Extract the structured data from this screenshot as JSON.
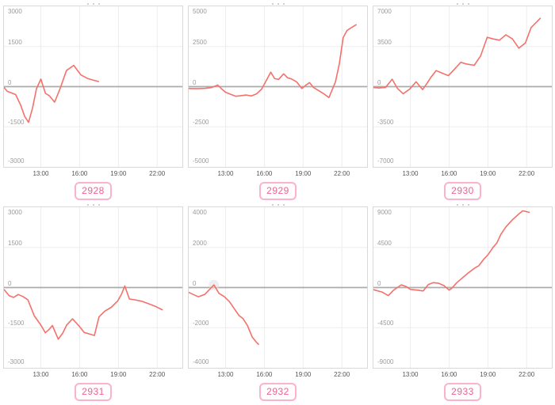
{
  "page": {
    "background": "#ffffff"
  },
  "colors": {
    "series_line": "#f4716b",
    "zero_line": "#ababab",
    "grid_line": "#ededed",
    "card_border": "#d9d9d9",
    "y_tick_label": "#9b9b9b",
    "x_tick_label": "#545454",
    "badge_text": "#ee6292",
    "badge_border": "#f9b4c8",
    "highlight_marker": "#e3e3e3"
  },
  "axis_defaults": {
    "x_tick_labels": [
      "13:00",
      "16:00",
      "19:00",
      "22:00"
    ],
    "x_tick_hours": [
      13,
      16,
      19,
      22
    ],
    "x_domain_hours": [
      10.15,
      23.95
    ],
    "grid": "on",
    "legend": "none"
  },
  "chart_data": [
    {
      "type": "line",
      "badge_label": "2928",
      "ylim": [
        -3000,
        3000
      ],
      "y_tick_values": [
        3000,
        1500,
        0,
        -1500,
        -3000
      ],
      "y_tick_labels": [
        "3000",
        "1500",
        "0",
        "-1500",
        "-3000"
      ],
      "x_tick_labels": [
        "13:00",
        "16:00",
        "19:00",
        "22:00"
      ],
      "series": [
        {
          "name": "equity-curve",
          "points": [
            [
              10.17,
              -40
            ],
            [
              10.4,
              -175
            ],
            [
              11.05,
              -295
            ],
            [
              11.45,
              -700
            ],
            [
              11.75,
              -1110
            ],
            [
              12.05,
              -1335
            ],
            [
              12.36,
              -805
            ],
            [
              12.66,
              -90
            ],
            [
              13.0,
              285
            ],
            [
              13.36,
              -250
            ],
            [
              13.67,
              -345
            ],
            [
              14.07,
              -580
            ],
            [
              14.48,
              -90
            ],
            [
              14.98,
              600
            ],
            [
              15.55,
              795
            ],
            [
              16.1,
              437
            ],
            [
              16.6,
              306
            ],
            [
              17.1,
              235
            ],
            [
              17.46,
              193
            ]
          ]
        }
      ],
      "highlight_point": null
    },
    {
      "type": "line",
      "badge_label": "2929",
      "ylim": [
        -5000,
        5000
      ],
      "y_tick_values": [
        5000,
        2500,
        0,
        -2500,
        -5000
      ],
      "y_tick_labels": [
        "5000",
        "2500",
        "0",
        "-2500",
        "-5000"
      ],
      "x_tick_labels": [
        "13:00",
        "16:00",
        "19:00",
        "22:00"
      ],
      "series": [
        {
          "name": "equity-curve",
          "points": [
            [
              10.17,
              -120
            ],
            [
              10.8,
              -130
            ],
            [
              11.4,
              -110
            ],
            [
              11.9,
              -60
            ],
            [
              12.4,
              100
            ],
            [
              12.7,
              -150
            ],
            [
              13.0,
              -350
            ],
            [
              13.4,
              -480
            ],
            [
              13.8,
              -600
            ],
            [
              14.2,
              -560
            ],
            [
              14.6,
              -520
            ],
            [
              15.0,
              -580
            ],
            [
              15.4,
              -450
            ],
            [
              15.8,
              -150
            ],
            [
              16.1,
              300
            ],
            [
              16.5,
              900
            ],
            [
              16.8,
              500
            ],
            [
              17.1,
              450
            ],
            [
              17.5,
              800
            ],
            [
              17.8,
              550
            ],
            [
              18.1,
              480
            ],
            [
              18.5,
              300
            ],
            [
              18.9,
              -120
            ],
            [
              19.2,
              80
            ],
            [
              19.5,
              250
            ],
            [
              19.8,
              -50
            ],
            [
              20.2,
              -250
            ],
            [
              20.6,
              -450
            ],
            [
              21.0,
              -680
            ],
            [
              21.5,
              300
            ],
            [
              21.8,
              1400
            ],
            [
              22.1,
              3050
            ],
            [
              22.4,
              3500
            ],
            [
              22.75,
              3680
            ],
            [
              23.1,
              3850
            ]
          ]
        }
      ],
      "highlight_point": null
    },
    {
      "type": "line",
      "badge_label": "2930",
      "ylim": [
        -7000,
        7000
      ],
      "y_tick_values": [
        7000,
        3500,
        0,
        -3500,
        -7000
      ],
      "y_tick_labels": [
        "7000",
        "3500",
        "0",
        "-3500",
        "-7000"
      ],
      "x_tick_labels": [
        "13:00",
        "16:00",
        "19:00",
        "22:00"
      ],
      "series": [
        {
          "name": "equity-curve",
          "points": [
            [
              10.17,
              -80
            ],
            [
              10.6,
              -120
            ],
            [
              11.1,
              -60
            ],
            [
              11.6,
              650
            ],
            [
              12.0,
              -150
            ],
            [
              12.45,
              -620
            ],
            [
              12.95,
              -220
            ],
            [
              13.45,
              420
            ],
            [
              13.95,
              -260
            ],
            [
              14.3,
              300
            ],
            [
              14.6,
              820
            ],
            [
              15.0,
              1400
            ],
            [
              15.45,
              1180
            ],
            [
              15.95,
              960
            ],
            [
              16.4,
              1500
            ],
            [
              16.9,
              2120
            ],
            [
              17.4,
              1960
            ],
            [
              17.95,
              1860
            ],
            [
              18.45,
              2700
            ],
            [
              18.95,
              4300
            ],
            [
              19.4,
              4160
            ],
            [
              19.9,
              4050
            ],
            [
              20.4,
              4520
            ],
            [
              20.9,
              4160
            ],
            [
              21.4,
              3350
            ],
            [
              21.9,
              3800
            ],
            [
              22.35,
              5150
            ],
            [
              22.7,
              5550
            ],
            [
              23.05,
              5950
            ]
          ]
        }
      ],
      "highlight_point": null
    },
    {
      "type": "line",
      "badge_label": "2931",
      "ylim": [
        -3000,
        3000
      ],
      "y_tick_values": [
        3000,
        1500,
        0,
        -1500,
        -3000
      ],
      "y_tick_labels": [
        "3000",
        "1500",
        "0",
        "-1500",
        "-3000"
      ],
      "x_tick_labels": [
        "13:00",
        "16:00",
        "19:00",
        "22:00"
      ],
      "series": [
        {
          "name": "equity-curve",
          "points": [
            [
              10.17,
              -80
            ],
            [
              10.55,
              -300
            ],
            [
              10.9,
              -370
            ],
            [
              11.25,
              -260
            ],
            [
              11.6,
              -330
            ],
            [
              12.0,
              -460
            ],
            [
              12.5,
              -1060
            ],
            [
              13.0,
              -1400
            ],
            [
              13.35,
              -1690
            ],
            [
              13.65,
              -1560
            ],
            [
              13.9,
              -1420
            ],
            [
              14.35,
              -1930
            ],
            [
              14.7,
              -1700
            ],
            [
              15.0,
              -1400
            ],
            [
              15.45,
              -1170
            ],
            [
              15.95,
              -1430
            ],
            [
              16.35,
              -1680
            ],
            [
              16.8,
              -1740
            ],
            [
              17.15,
              -1790
            ],
            [
              17.5,
              -1100
            ],
            [
              17.95,
              -880
            ],
            [
              18.45,
              -740
            ],
            [
              18.95,
              -500
            ],
            [
              19.25,
              -240
            ],
            [
              19.5,
              60
            ],
            [
              19.85,
              -430
            ],
            [
              20.3,
              -460
            ],
            [
              20.8,
              -510
            ],
            [
              21.3,
              -600
            ],
            [
              21.85,
              -700
            ],
            [
              22.4,
              -830
            ]
          ]
        }
      ],
      "highlight_point": null
    },
    {
      "type": "line",
      "badge_label": "2932",
      "ylim": [
        -4000,
        4000
      ],
      "y_tick_values": [
        4000,
        2000,
        0,
        -2000,
        -4000
      ],
      "y_tick_labels": [
        "4000",
        "2000",
        "0",
        "-2000",
        "-4000"
      ],
      "x_tick_labels": [
        "13:00",
        "16:00",
        "19:00",
        "22:00"
      ],
      "series": [
        {
          "name": "equity-curve",
          "points": [
            [
              10.17,
              -250
            ],
            [
              10.9,
              -460
            ],
            [
              11.4,
              -340
            ],
            [
              12.1,
              130
            ],
            [
              12.5,
              -290
            ],
            [
              12.9,
              -450
            ],
            [
              13.3,
              -700
            ],
            [
              13.7,
              -1080
            ],
            [
              14.05,
              -1400
            ],
            [
              14.35,
              -1550
            ],
            [
              14.7,
              -1900
            ],
            [
              15.05,
              -2450
            ],
            [
              15.35,
              -2700
            ],
            [
              15.55,
              -2830
            ]
          ]
        }
      ],
      "highlight_point": [
        12.1,
        130
      ]
    },
    {
      "type": "line",
      "badge_label": "2933",
      "ylim": [
        -9000,
        9000
      ],
      "y_tick_values": [
        9000,
        4500,
        0,
        -4500,
        -9000
      ],
      "y_tick_labels": [
        "9000",
        "4500",
        "0",
        "-4500",
        "-9000"
      ],
      "x_tick_labels": [
        "13:00",
        "16:00",
        "19:00",
        "22:00"
      ],
      "series": [
        {
          "name": "equity-curve",
          "points": [
            [
              10.17,
              -250
            ],
            [
              10.8,
              -500
            ],
            [
              11.3,
              -900
            ],
            [
              11.7,
              -300
            ],
            [
              12.3,
              300
            ],
            [
              12.7,
              100
            ],
            [
              13.0,
              -200
            ],
            [
              13.5,
              -280
            ],
            [
              14.0,
              -380
            ],
            [
              14.4,
              350
            ],
            [
              14.8,
              550
            ],
            [
              15.2,
              480
            ],
            [
              15.6,
              220
            ],
            [
              16.0,
              -280
            ],
            [
              16.2,
              -100
            ],
            [
              16.6,
              550
            ],
            [
              17.0,
              1050
            ],
            [
              17.5,
              1650
            ],
            [
              18.0,
              2200
            ],
            [
              18.3,
              2450
            ],
            [
              18.7,
              3200
            ],
            [
              19.0,
              3650
            ],
            [
              19.4,
              4500
            ],
            [
              19.7,
              5000
            ],
            [
              20.0,
              5950
            ],
            [
              20.4,
              6800
            ],
            [
              20.9,
              7600
            ],
            [
              21.4,
              8250
            ],
            [
              21.7,
              8600
            ],
            [
              22.0,
              8500
            ],
            [
              22.2,
              8430
            ]
          ]
        }
      ],
      "highlight_point": null
    }
  ]
}
